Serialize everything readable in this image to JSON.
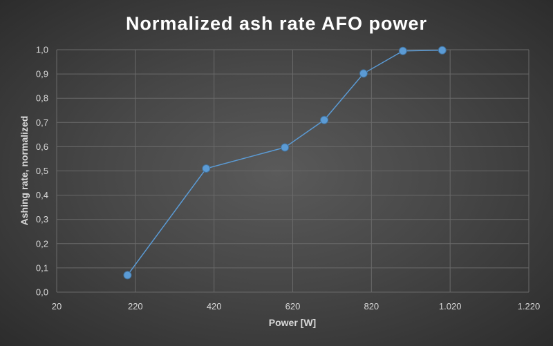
{
  "chart_data": {
    "type": "scatter",
    "title": "Normalized ash rate AFO power",
    "xlabel": "Power [W]",
    "ylabel": "Ashing rate, normalized",
    "xlim": [
      20,
      1220
    ],
    "ylim": [
      0,
      1.0
    ],
    "x_ticks": [
      20,
      220,
      420,
      620,
      820,
      1020,
      1220
    ],
    "x_tick_labels": [
      "20",
      "220",
      "420",
      "620",
      "820",
      "1.020",
      "1.220"
    ],
    "y_ticks": [
      0,
      0.1,
      0.2,
      0.3,
      0.4,
      0.5,
      0.6,
      0.7,
      0.8,
      0.9,
      1.0
    ],
    "y_tick_labels": [
      "0,0",
      "0,1",
      "0,2",
      "0,3",
      "0,4",
      "0,5",
      "0,6",
      "0,7",
      "0,8",
      "0,9",
      "1,0"
    ],
    "grid": true,
    "line_color": "#5b9bd5",
    "marker_color": "#5b9bd5",
    "marker_edge_color": "#41719c",
    "series": [
      {
        "x": [
          200,
          400,
          600,
          700,
          800,
          900,
          1000
        ],
        "values": [
          0.07,
          0.51,
          0.597,
          0.71,
          0.902,
          0.995,
          0.998
        ]
      }
    ]
  }
}
